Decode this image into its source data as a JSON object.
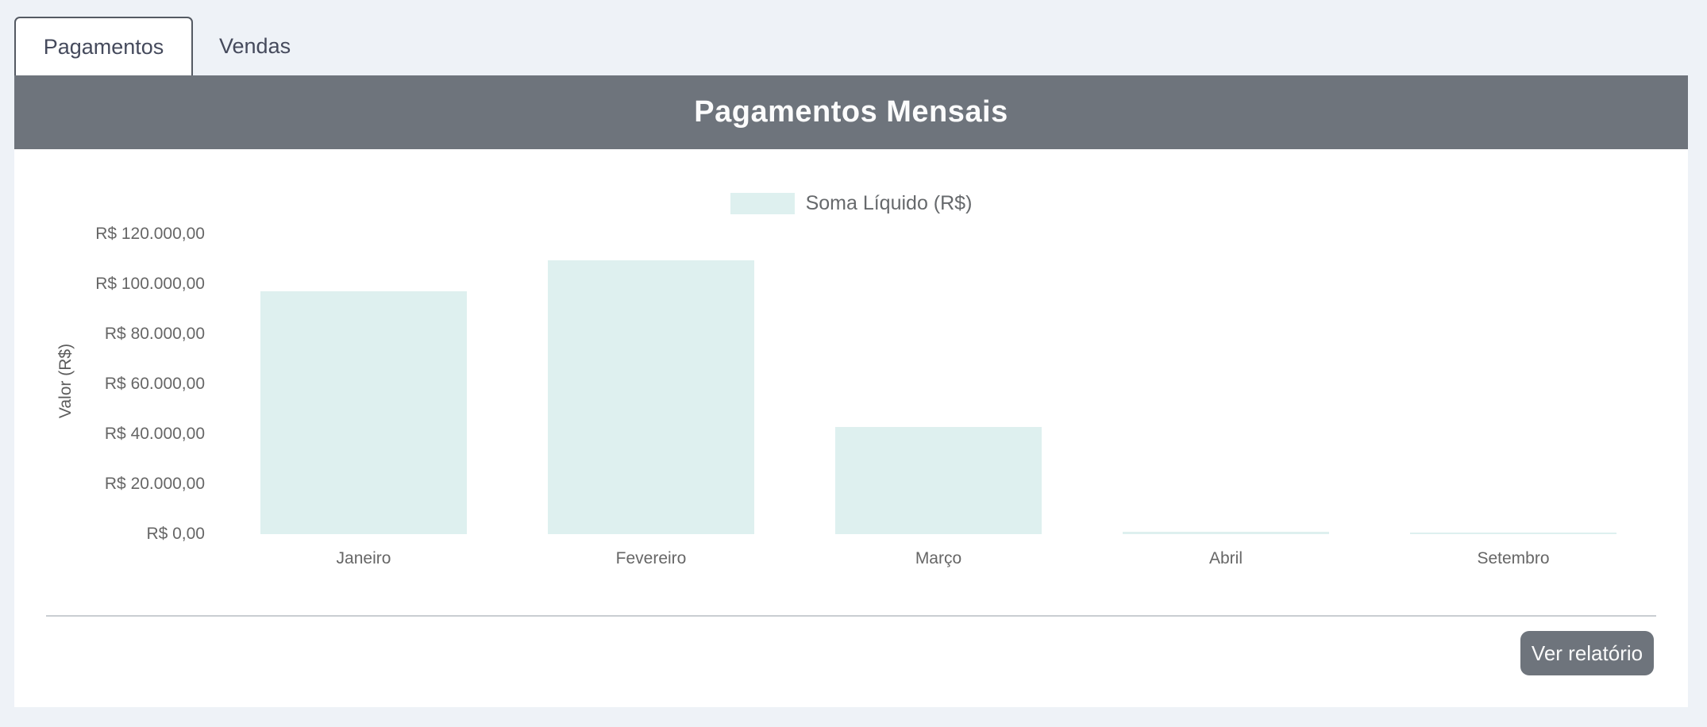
{
  "tabs": [
    {
      "label": "Pagamentos",
      "active": true
    },
    {
      "label": "Vendas",
      "active": false
    }
  ],
  "header": {
    "title": "Pagamentos Mensais"
  },
  "chart_data": {
    "type": "bar",
    "title": "Pagamentos Mensais",
    "categories": [
      "Janeiro",
      "Fevereiro",
      "Março",
      "Abril",
      "Setembro"
    ],
    "values": [
      97000,
      109500,
      43000,
      800,
      600
    ],
    "series_name": "Soma Líquido (R$)",
    "legend": {
      "label": "Soma Líquido (R$)",
      "position": "top"
    },
    "xlabel": "",
    "ylabel": "Valor (R$)",
    "ylim": [
      0,
      120000
    ],
    "ytick_step": 20000,
    "ytick_labels": [
      "R$ 120.000,00",
      "R$ 100.000,00",
      "R$ 80.000,00",
      "R$ 60.000,00",
      "R$ 40.000,00",
      "R$ 20.000,00",
      "R$ 0,00"
    ],
    "grid": false,
    "bar_color": "#def0ef"
  },
  "footer": {
    "button_label": "Ver relatório"
  },
  "colors": {
    "page_bg": "#eef2f7",
    "header_bg": "#6e747c",
    "card_bg": "#ffffff",
    "bar_fill": "#def0ef",
    "tab_border": "#545a63",
    "tab_text": "#454a5c",
    "muted_text": "#666666",
    "divider": "#c9cdd2",
    "button_bg": "#6e747c",
    "button_text": "#fafafa",
    "title_text": "#fcfcfc"
  }
}
